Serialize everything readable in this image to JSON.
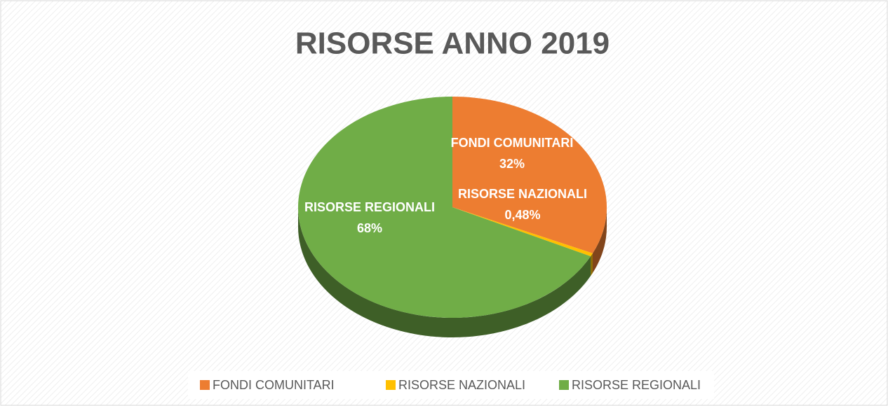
{
  "chart_data": {
    "type": "pie",
    "title": "RISORSE ANNO 2019",
    "categories": [
      "FONDI COMUNITARI",
      "RISORSE NAZIONALI",
      "RISORSE REGIONALI"
    ],
    "values": [
      32,
      0.48,
      68
    ],
    "value_labels": [
      "32%",
      "0,48%",
      "68%"
    ],
    "colors": [
      "#ed7d31",
      "#ffc000",
      "#70ad47"
    ],
    "legend": "bottom"
  }
}
